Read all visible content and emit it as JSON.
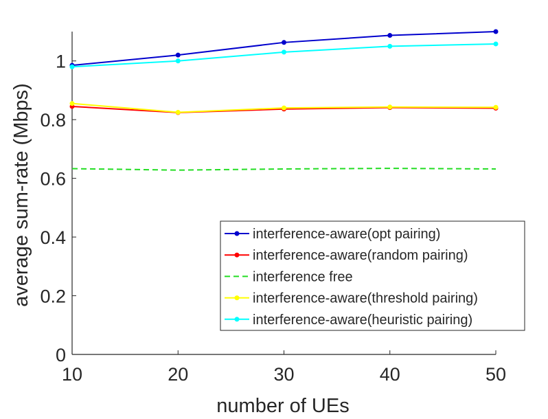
{
  "chart_data": {
    "type": "line",
    "xlabel": "number of UEs",
    "ylabel": "average sum-rate (Mbps)",
    "x": [
      10,
      20,
      30,
      40,
      50
    ],
    "xlim": [
      10,
      50
    ],
    "ylim": [
      0,
      1.1
    ],
    "xticks": [
      "10",
      "20",
      "30",
      "40",
      "50"
    ],
    "yticks": [
      "0",
      "0.2",
      "0.4",
      "0.6",
      "0.8",
      "1"
    ],
    "grid": false,
    "legend_position": "bottom-right",
    "series": [
      {
        "name": "interference-aware(opt pairing)",
        "color": "#0000CD",
        "style": "solid",
        "marker": "dot",
        "values": [
          0.985,
          1.02,
          1.063,
          1.087,
          1.1
        ]
      },
      {
        "name": "interference-aware(random pairing)",
        "color": "#FF0000",
        "style": "solid",
        "marker": "dot",
        "values": [
          0.845,
          0.824,
          0.836,
          0.841,
          0.839
        ]
      },
      {
        "name": "interference free",
        "color": "#22DD22",
        "style": "dashed",
        "marker": "none",
        "values": [
          0.633,
          0.628,
          0.632,
          0.634,
          0.632
        ]
      },
      {
        "name": "interference-aware(threshold pairing)",
        "color": "#FFFF00",
        "style": "solid",
        "marker": "dot",
        "values": [
          0.855,
          0.825,
          0.84,
          0.843,
          0.842
        ]
      },
      {
        "name": "interference-aware(heuristic pairing)",
        "color": "#00FFFF",
        "style": "solid",
        "marker": "dot",
        "values": [
          0.98,
          1.0,
          1.03,
          1.05,
          1.058
        ]
      }
    ]
  }
}
